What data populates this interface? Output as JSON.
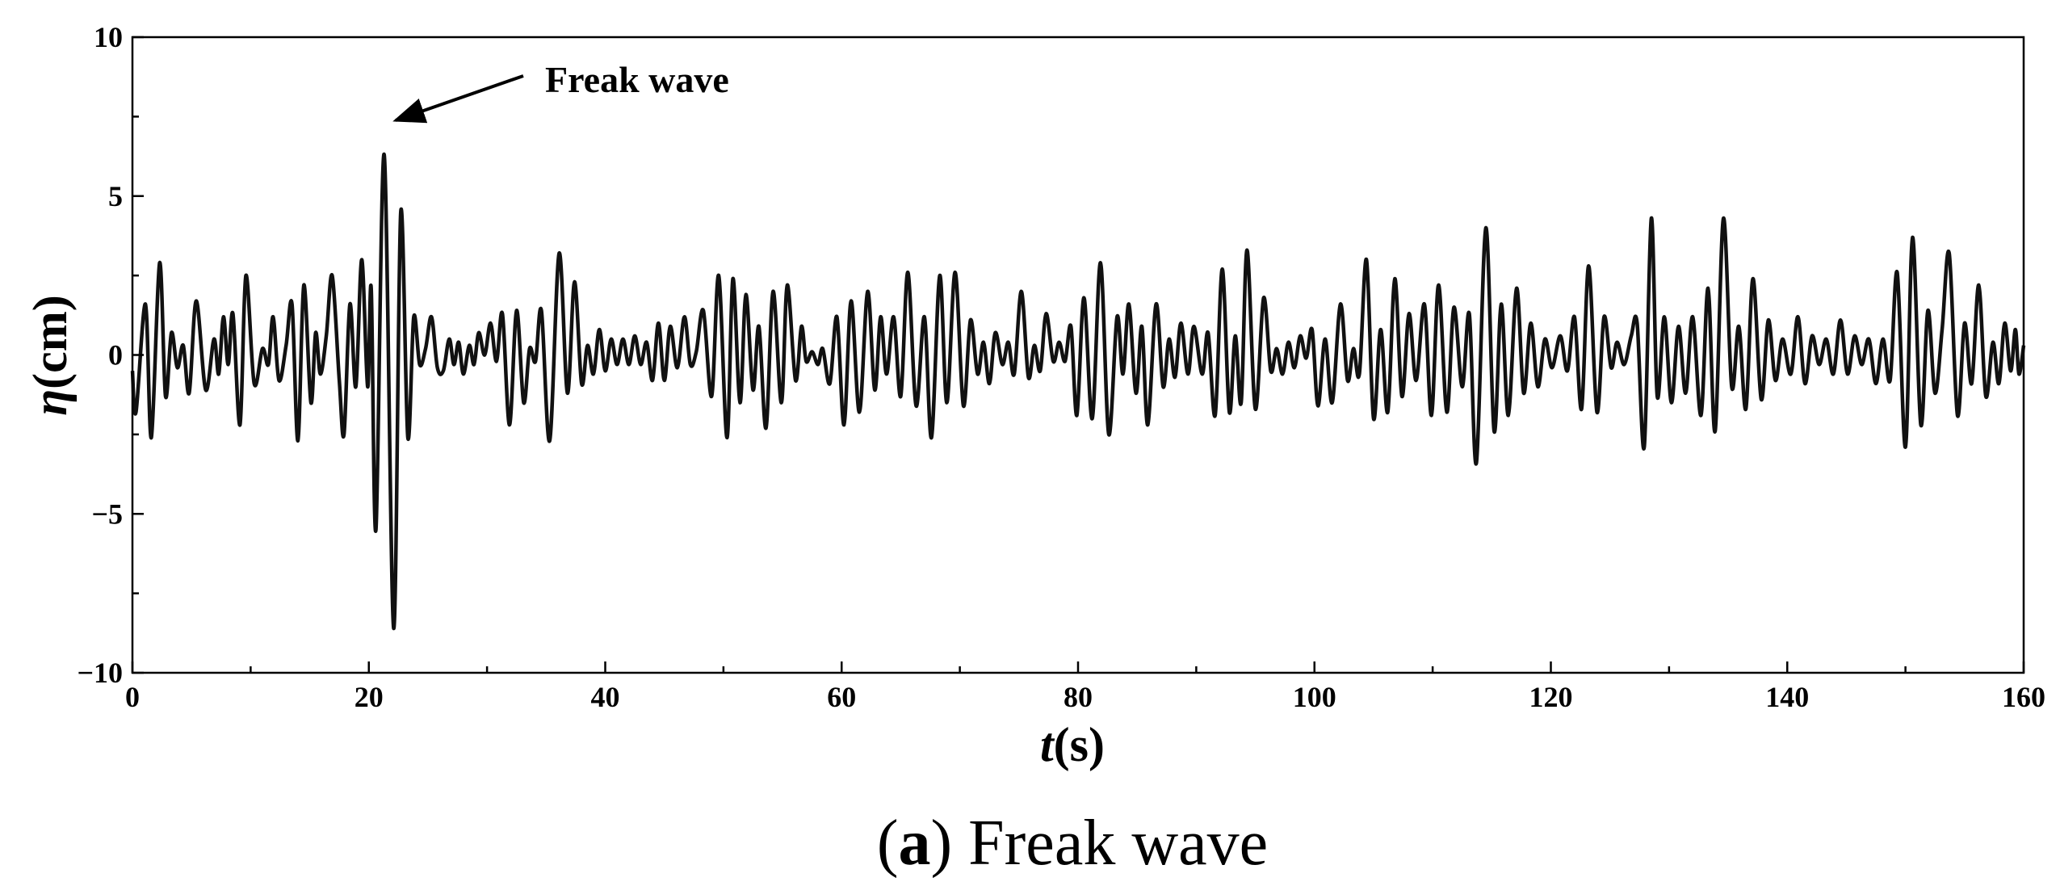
{
  "chart_data": {
    "type": "line",
    "annotation": "Freak wave",
    "x_label": [
      "t",
      "(s)"
    ],
    "y_label": [
      "η",
      "(cm)"
    ],
    "caption": [
      "(",
      "a",
      ") Freak wave"
    ],
    "xlim": [
      0,
      160
    ],
    "ylim": [
      -10,
      10
    ],
    "xticks": [
      0,
      20,
      40,
      60,
      80,
      100,
      120,
      140,
      160
    ],
    "x_minor_ticks": [
      10,
      30,
      50,
      70,
      90,
      110,
      130,
      150
    ],
    "yticks": [
      {
        "value": -10,
        "label": "−10"
      },
      {
        "value": -5,
        "label": "−5"
      },
      0,
      5,
      10
    ],
    "y_minor_ticks": [
      -7.5,
      -2.5,
      2.5,
      7.5
    ],
    "grid": false,
    "series": [
      {
        "color": "#111111",
        "x": [
          0,
          0.3,
          1.1,
          1.6,
          2.3,
          2.8,
          3.3,
          3.8,
          4.3,
          4.8,
          5.4,
          6.2,
          6.9,
          7.3,
          7.7,
          8.1,
          8.5,
          9.1,
          9.6,
          10.3,
          11.0,
          11.5,
          11.9,
          12.4,
          13.0,
          13.5,
          14.0,
          14.5,
          15.1,
          15.5,
          15.9,
          16.4,
          16.9,
          17.5,
          17.9,
          18.4,
          18.9,
          19.4,
          19.9,
          20.2,
          20.6,
          21.3,
          22.1,
          22.7,
          23.3,
          23.8,
          24.3,
          24.8,
          25.3,
          25.8,
          26.3,
          26.8,
          27.2,
          27.6,
          28.0,
          28.5,
          28.9,
          29.3,
          29.8,
          30.3,
          30.8,
          31.3,
          31.9,
          32.5,
          33.1,
          33.6,
          34.1,
          34.6,
          35.3,
          36.1,
          36.8,
          37.4,
          38.0,
          38.5,
          39.0,
          39.5,
          40.0,
          40.5,
          41.0,
          41.5,
          42.0,
          42.5,
          43.0,
          43.5,
          44.0,
          44.5,
          45.0,
          45.5,
          46.1,
          46.7,
          47.2,
          47.7,
          48.3,
          49.0,
          49.6,
          50.3,
          50.8,
          51.4,
          51.9,
          52.5,
          53.0,
          53.6,
          54.2,
          54.9,
          55.4,
          56.1,
          56.6,
          57.0,
          57.5,
          58.0,
          58.4,
          59.0,
          59.6,
          60.2,
          60.8,
          61.5,
          62.2,
          62.8,
          63.3,
          63.8,
          64.4,
          65.0,
          65.6,
          66.3,
          67.0,
          67.6,
          68.3,
          68.9,
          69.6,
          70.3,
          70.9,
          71.5,
          72.0,
          72.5,
          73.0,
          73.6,
          74.1,
          74.6,
          75.2,
          75.8,
          76.3,
          76.8,
          77.3,
          77.9,
          78.4,
          78.9,
          79.4,
          79.9,
          80.5,
          81.2,
          81.9,
          82.6,
          83.3,
          83.8,
          84.3,
          84.9,
          85.4,
          85.9,
          86.6,
          87.2,
          87.7,
          88.2,
          88.7,
          89.3,
          89.8,
          90.5,
          91.0,
          91.6,
          92.2,
          92.8,
          93.3,
          93.8,
          94.3,
          95.0,
          95.7,
          96.3,
          96.8,
          97.3,
          97.8,
          98.3,
          98.8,
          99.3,
          99.8,
          100.3,
          100.9,
          101.5,
          102.2,
          102.8,
          103.3,
          103.8,
          104.4,
          105.0,
          105.6,
          106.2,
          106.8,
          107.4,
          108.0,
          108.6,
          109.3,
          109.9,
          110.5,
          111.2,
          111.8,
          112.5,
          113.1,
          113.7,
          114.5,
          115.2,
          115.8,
          116.4,
          117.1,
          117.7,
          118.3,
          118.9,
          119.5,
          120.1,
          120.8,
          121.4,
          122.0,
          122.6,
          123.2,
          123.9,
          124.5,
          125.1,
          125.6,
          126.2,
          126.8,
          127.3,
          127.9,
          128.5,
          129.0,
          129.6,
          130.2,
          130.8,
          131.4,
          132.0,
          132.7,
          133.3,
          133.9,
          134.6,
          135.3,
          135.9,
          136.5,
          137.1,
          137.8,
          138.4,
          139.0,
          139.6,
          140.3,
          140.9,
          141.5,
          142.1,
          142.7,
          143.3,
          143.9,
          144.5,
          145.1,
          145.7,
          146.3,
          146.9,
          147.5,
          148.1,
          148.7,
          149.3,
          150.0,
          150.6,
          151.3,
          151.9,
          152.5,
          153.1,
          153.7,
          154.4,
          155.0,
          155.6,
          156.2,
          156.8,
          157.4,
          157.9,
          158.4,
          158.9,
          159.3,
          159.6,
          160
        ],
        "values": [
          -0.5,
          -1.8,
          1.6,
          -2.6,
          2.9,
          -1.3,
          0.7,
          -0.4,
          0.3,
          -1.2,
          1.7,
          -1.1,
          0.5,
          -0.6,
          1.2,
          -0.3,
          1.3,
          -2.2,
          2.5,
          -0.9,
          0.2,
          -0.3,
          1.2,
          -0.8,
          0.3,
          1.6,
          -2.7,
          2.2,
          -1.5,
          0.7,
          -0.6,
          0.6,
          2.5,
          -0.8,
          -2.5,
          1.6,
          -1.0,
          3.0,
          -1.0,
          2.1,
          -5.5,
          6.3,
          -8.6,
          4.5,
          -2.6,
          1.2,
          -0.3,
          0.2,
          1.2,
          -0.4,
          -0.5,
          0.5,
          -0.3,
          0.4,
          -0.6,
          0.3,
          -0.3,
          0.7,
          0.0,
          1.0,
          -0.2,
          1.3,
          -2.2,
          1.4,
          -1.5,
          0.2,
          -0.2,
          1.4,
          -2.7,
          3.2,
          -1.2,
          2.3,
          -0.9,
          0.3,
          -0.6,
          0.8,
          -0.5,
          0.5,
          -0.3,
          0.5,
          -0.3,
          0.6,
          -0.3,
          0.4,
          -0.8,
          1.0,
          -0.8,
          0.9,
          -0.4,
          1.2,
          -0.3,
          0.1,
          1.4,
          -1.3,
          2.5,
          -2.6,
          2.4,
          -1.5,
          1.9,
          -1.1,
          0.9,
          -2.3,
          2.0,
          -1.5,
          2.2,
          -0.8,
          0.9,
          -0.2,
          0.1,
          -0.3,
          0.2,
          -0.9,
          1.2,
          -2.2,
          1.7,
          -1.8,
          2.0,
          -1.1,
          1.2,
          -0.6,
          1.2,
          -1.3,
          2.6,
          -1.6,
          1.2,
          -2.6,
          2.5,
          -1.5,
          2.6,
          -1.6,
          1.1,
          -0.6,
          0.4,
          -0.9,
          0.7,
          -0.3,
          0.4,
          -0.6,
          2.0,
          -0.7,
          0.3,
          -0.5,
          1.3,
          -0.2,
          0.4,
          -0.2,
          0.9,
          -1.9,
          1.8,
          -2.0,
          2.9,
          -2.5,
          1.2,
          -0.6,
          1.6,
          -1.2,
          0.9,
          -2.2,
          1.6,
          -1.0,
          0.5,
          -0.7,
          1.0,
          -0.6,
          0.9,
          -0.6,
          0.7,
          -1.9,
          2.7,
          -1.8,
          0.6,
          -1.5,
          3.3,
          -1.7,
          1.8,
          -0.5,
          0.2,
          -0.6,
          0.4,
          -0.4,
          0.6,
          -0.1,
          0.8,
          -1.6,
          0.5,
          -1.5,
          1.6,
          -0.8,
          0.2,
          -0.6,
          3.0,
          -2.0,
          0.8,
          -1.8,
          2.4,
          -1.3,
          1.3,
          -0.8,
          1.6,
          -1.9,
          2.2,
          -1.8,
          1.5,
          -1.0,
          1.3,
          -3.4,
          4.0,
          -2.4,
          1.6,
          -1.9,
          2.1,
          -1.2,
          1.0,
          -1.0,
          0.5,
          -0.4,
          0.6,
          -0.5,
          1.2,
          -1.7,
          2.8,
          -1.8,
          1.2,
          -0.4,
          0.4,
          -0.3,
          0.6,
          1.0,
          -2.9,
          4.3,
          -1.3,
          1.2,
          -1.5,
          0.9,
          -1.2,
          1.2,
          -1.9,
          2.1,
          -2.4,
          4.3,
          -1.0,
          0.9,
          -1.7,
          2.4,
          -1.4,
          1.1,
          -0.8,
          0.5,
          -0.6,
          1.2,
          -0.9,
          0.6,
          -0.3,
          0.5,
          -0.6,
          1.1,
          -0.6,
          0.6,
          -0.3,
          0.5,
          -0.9,
          0.5,
          -0.8,
          2.6,
          -2.9,
          3.7,
          -2.2,
          1.4,
          -1.2,
          0.8,
          3.2,
          -1.9,
          1.0,
          -0.9,
          2.2,
          -1.3,
          0.4,
          -0.9,
          1.0,
          -0.5,
          0.8,
          -0.6,
          0.3
        ]
      }
    ]
  }
}
